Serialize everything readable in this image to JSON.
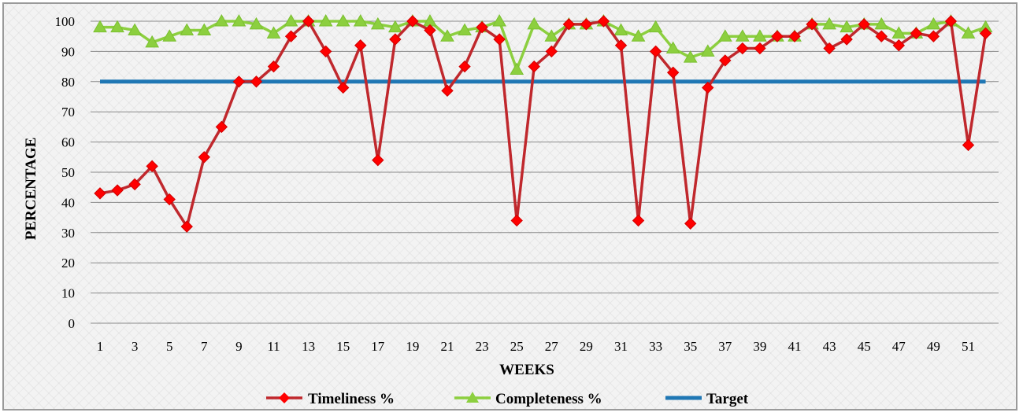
{
  "chart_data": {
    "type": "line",
    "xlabel": "WEEKS",
    "ylabel": "PERCENTAGE",
    "ylim": [
      0,
      100
    ],
    "yticks": [
      0,
      10,
      20,
      30,
      40,
      50,
      60,
      70,
      80,
      90,
      100
    ],
    "x": [
      1,
      2,
      3,
      4,
      5,
      6,
      7,
      8,
      9,
      10,
      11,
      12,
      13,
      14,
      15,
      16,
      17,
      18,
      19,
      20,
      21,
      22,
      23,
      24,
      25,
      26,
      27,
      28,
      29,
      30,
      31,
      32,
      33,
      34,
      35,
      36,
      37,
      38,
      39,
      40,
      41,
      42,
      43,
      44,
      45,
      46,
      47,
      48,
      49,
      50,
      51,
      52
    ],
    "xtick_labels": [
      "1",
      "3",
      "5",
      "7",
      "9",
      "11",
      "13",
      "15",
      "17",
      "19",
      "21",
      "23",
      "25",
      "27",
      "29",
      "31",
      "33",
      "35",
      "37",
      "39",
      "41",
      "43",
      "45",
      "47",
      "49",
      "51"
    ],
    "grid": "horizontal",
    "legend_position": "bottom",
    "series": [
      {
        "name": "Timeliness %",
        "color": "#c0282d",
        "marker": "diamond",
        "values": [
          43,
          44,
          46,
          52,
          41,
          32,
          55,
          65,
          80,
          80,
          85,
          95,
          100,
          90,
          78,
          92,
          54,
          94,
          100,
          97,
          77,
          85,
          98,
          94,
          34,
          85,
          90,
          99,
          99,
          100,
          92,
          34,
          90,
          83,
          33,
          78,
          87,
          91,
          91,
          95,
          95,
          99,
          91,
          94,
          99,
          95,
          92,
          96,
          95,
          100,
          59,
          96
        ]
      },
      {
        "name": "Completeness %",
        "color": "#8ccf3f",
        "marker": "triangle",
        "values": [
          98,
          98,
          97,
          93,
          95,
          97,
          97,
          100,
          100,
          99,
          96,
          100,
          100,
          100,
          100,
          100,
          99,
          98,
          100,
          100,
          95,
          97,
          98,
          100,
          84,
          99,
          95,
          99,
          99,
          100,
          97,
          95,
          98,
          91,
          88,
          90,
          95,
          95,
          95,
          95,
          95,
          99,
          99,
          98,
          99,
          99,
          96,
          96,
          99,
          100,
          96,
          98
        ]
      },
      {
        "name": "Target",
        "color": "#1f77b4",
        "marker": "none",
        "values": [
          80,
          80,
          80,
          80,
          80,
          80,
          80,
          80,
          80,
          80,
          80,
          80,
          80,
          80,
          80,
          80,
          80,
          80,
          80,
          80,
          80,
          80,
          80,
          80,
          80,
          80,
          80,
          80,
          80,
          80,
          80,
          80,
          80,
          80,
          80,
          80,
          80,
          80,
          80,
          80,
          80,
          80,
          80,
          80,
          80,
          80,
          80,
          80,
          80,
          80,
          80,
          80
        ]
      }
    ]
  }
}
